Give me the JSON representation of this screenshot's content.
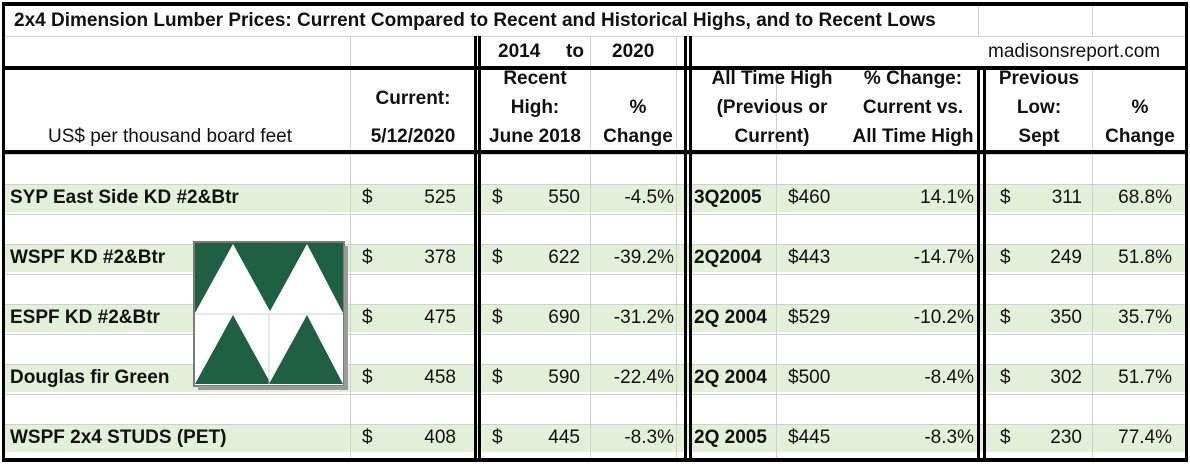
{
  "title": "2x4 Dimension Lumber Prices: Current Compared to Recent and Historical Highs, and to Recent Lows",
  "range": {
    "from": "2014",
    "to_word": "to",
    "to": "2020"
  },
  "source": "madisonsreport.com",
  "unit_label": "US$ per thousand board feet",
  "headers": {
    "current": [
      "Current:",
      "5/12/2020"
    ],
    "recent_high": [
      "Recent",
      "High:",
      "June 2018"
    ],
    "pct_change": [
      "%",
      "Change"
    ],
    "all_time_high": [
      "All Time High",
      "(Previous or",
      "Current)"
    ],
    "pct_change_ath": [
      "% Change:",
      "Current vs.",
      "All Time High"
    ],
    "previous_low": [
      "Previous",
      "Low:",
      "Sept"
    ],
    "pct_change_low": [
      "%",
      "Change"
    ]
  },
  "currency": "$",
  "rows": [
    {
      "name": "SYP East Side KD #2&Btr",
      "current": "525",
      "recent_high": "550",
      "pct_recent": "-4.5%",
      "ath_date": "3Q2005",
      "ath_price": "$460",
      "pct_ath": "14.1%",
      "low": "311",
      "pct_low": "68.8%"
    },
    {
      "name": "WSPF KD #2&Btr",
      "current": "378",
      "recent_high": "622",
      "pct_recent": "-39.2%",
      "ath_date": "2Q2004",
      "ath_price": "$443",
      "pct_ath": "-14.7%",
      "low": "249",
      "pct_low": "51.8%"
    },
    {
      "name": "ESPF KD #2&Btr",
      "current": "475",
      "recent_high": "690",
      "pct_recent": "-31.2%",
      "ath_date": "2Q 2004",
      "ath_price": "$529",
      "pct_ath": "-10.2%",
      "low": "350",
      "pct_low": "35.7%"
    },
    {
      "name": "Douglas fir Green",
      "current": "458",
      "recent_high": "590",
      "pct_recent": "-22.4%",
      "ath_date": "2Q 2004",
      "ath_price": "$500",
      "pct_ath": "-8.4%",
      "low": "302",
      "pct_low": "51.7%"
    },
    {
      "name": "WSPF 2x4 STUDS (PET)",
      "current": "408",
      "recent_high": "445",
      "pct_recent": "-8.3%",
      "ath_date": "2Q 2005",
      "ath_price": "$445",
      "pct_ath": "-8.3%",
      "low": "230",
      "pct_low": "77.4%"
    }
  ],
  "colors": {
    "band": "#e3efd9",
    "logo_green": "#1f5f44"
  },
  "logo_icon": "madisons-triangle-logo-icon"
}
